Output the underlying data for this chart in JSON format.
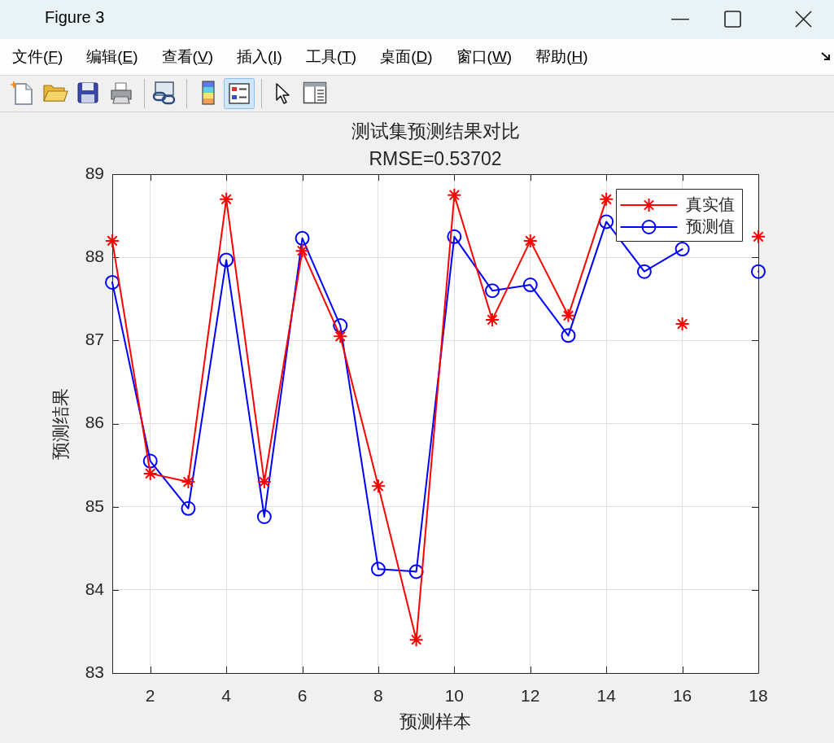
{
  "chart_data": {
    "type": "line",
    "title": "测试集预测结果对比",
    "subtitle": "RMSE=0.53702",
    "xlabel": "预测样本",
    "ylabel": "预测结果",
    "x": [
      1,
      2,
      3,
      4,
      5,
      6,
      7,
      8,
      9,
      10,
      11,
      12,
      13,
      14,
      15,
      16,
      17,
      18
    ],
    "series": [
      {
        "name": "真实值",
        "color": "#ff0000",
        "marker": "cross",
        "values": [
          88.2,
          85.4,
          85.3,
          88.7,
          85.3,
          88.08,
          87.05,
          85.25,
          83.4,
          88.75,
          87.25,
          88.2,
          87.3,
          88.7,
          null,
          87.2,
          null,
          88.25
        ]
      },
      {
        "name": "预测值",
        "color": "#0000ff",
        "marker": "circle",
        "values": [
          87.7,
          85.55,
          84.98,
          87.97,
          84.88,
          88.23,
          87.18,
          84.25,
          84.22,
          88.25,
          87.6,
          87.67,
          87.06,
          88.43,
          87.83,
          88.1,
          null,
          87.83
        ]
      }
    ],
    "xlim": [
      1,
      18
    ],
    "xticks": [
      2,
      4,
      6,
      8,
      10,
      12,
      14,
      16,
      18
    ],
    "ylim": [
      83,
      89
    ],
    "yticks": [
      83,
      84,
      85,
      86,
      87,
      88,
      89
    ],
    "grid": true,
    "legend": "top right",
    "line_style": "solid",
    "annotations": [
      "Figure 3",
      "文件(F)",
      "编辑(E)",
      "查看(V)",
      "插入(I)",
      "工具(T)",
      "桌面(D)",
      "窗口(W)",
      "帮助(H)"
    ]
  }
}
